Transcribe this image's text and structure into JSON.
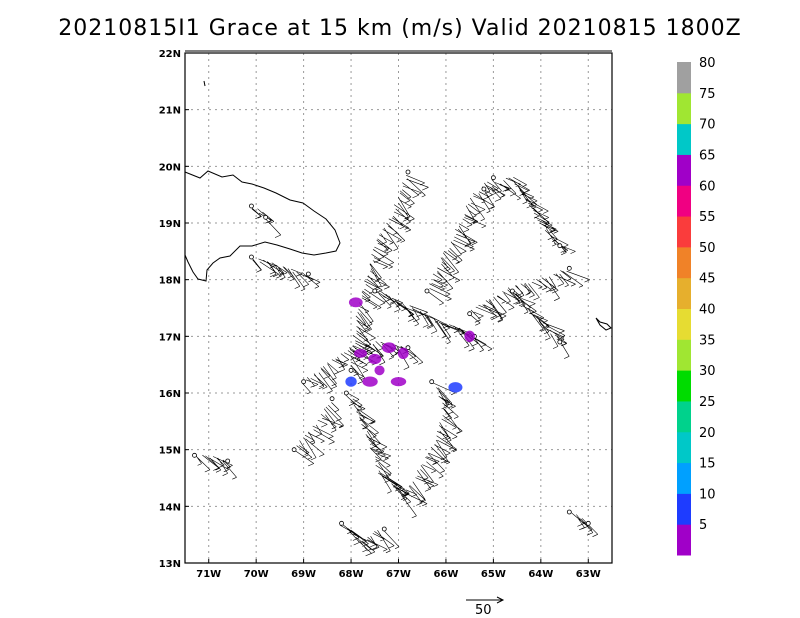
{
  "title": "20210815I1 Grace at 15 km (m/s) Valid 20210815  1800Z",
  "map": {
    "lon_range": [
      -71.5,
      -62.5
    ],
    "lat_range": [
      13,
      22
    ],
    "lat_ticks": [
      {
        "value": 13,
        "label": "13N"
      },
      {
        "value": 14,
        "label": "14N"
      },
      {
        "value": 15,
        "label": "15N"
      },
      {
        "value": 16,
        "label": "16N"
      },
      {
        "value": 17,
        "label": "17N"
      },
      {
        "value": 18,
        "label": "18N"
      },
      {
        "value": 19,
        "label": "19N"
      },
      {
        "value": 20,
        "label": "20N"
      },
      {
        "value": 21,
        "label": "21N"
      },
      {
        "value": 22,
        "label": "22N"
      }
    ],
    "lon_ticks": [
      {
        "value": -71,
        "label": "71W"
      },
      {
        "value": -70,
        "label": "70W"
      },
      {
        "value": -69,
        "label": "69W"
      },
      {
        "value": -68,
        "label": "68W"
      },
      {
        "value": -67,
        "label": "67W"
      },
      {
        "value": -66,
        "label": "66W"
      },
      {
        "value": -65,
        "label": "65W"
      },
      {
        "value": -64,
        "label": "64W"
      },
      {
        "value": -63,
        "label": "63W"
      }
    ],
    "grid": true
  },
  "colorbar": {
    "levels": [
      {
        "label": "5",
        "color": "#a000c8"
      },
      {
        "label": "10",
        "color": "#1e3cff"
      },
      {
        "label": "15",
        "color": "#00a0ff"
      },
      {
        "label": "20",
        "color": "#00c8c8"
      },
      {
        "label": "25",
        "color": "#00d28c"
      },
      {
        "label": "30",
        "color": "#00dc00"
      },
      {
        "label": "35",
        "color": "#a0e632"
      },
      {
        "label": "40",
        "color": "#e6dc32"
      },
      {
        "label": "45",
        "color": "#e6af2d"
      },
      {
        "label": "50",
        "color": "#f08228"
      },
      {
        "label": "55",
        "color": "#fa3c3c"
      },
      {
        "label": "60",
        "color": "#f00082"
      },
      {
        "label": "65",
        "color": "#a000c8"
      },
      {
        "label": "70",
        "color": "#00c8c8"
      },
      {
        "label": "75",
        "color": "#a0e632"
      },
      {
        "label": "80",
        "color": "#a0a0a0"
      }
    ]
  },
  "reference_vector": {
    "label": "50"
  },
  "wind_observations": {
    "flight_tracks": [
      [
        [
          -68.0,
          16.4
        ],
        [
          -67.9,
          17.2
        ],
        [
          -67.7,
          17.9
        ],
        [
          -67.5,
          18.6
        ],
        [
          -67.1,
          19.2
        ],
        [
          -66.8,
          19.9
        ]
      ],
      [
        [
          -68.1,
          16.0
        ],
        [
          -67.8,
          15.6
        ],
        [
          -67.6,
          15.1
        ],
        [
          -67.4,
          14.6
        ],
        [
          -66.9,
          14.2
        ],
        [
          -66.5,
          14.7
        ],
        [
          -66.2,
          15.2
        ],
        [
          -66.0,
          15.8
        ],
        [
          -66.3,
          16.2
        ]
      ],
      [
        [
          -67.5,
          17.8
        ],
        [
          -67.0,
          17.6
        ],
        [
          -66.5,
          17.4
        ],
        [
          -66.0,
          17.2
        ],
        [
          -65.4,
          17.0
        ]
      ],
      [
        [
          -66.4,
          17.8
        ],
        [
          -66.0,
          18.5
        ],
        [
          -65.7,
          19.0
        ],
        [
          -65.4,
          19.5
        ],
        [
          -65.0,
          19.8
        ]
      ],
      [
        [
          -65.2,
          19.6
        ],
        [
          -64.6,
          19.8
        ],
        [
          -64.3,
          19.4
        ],
        [
          -64.0,
          19.0
        ],
        [
          -63.6,
          18.6
        ]
      ],
      [
        [
          -65.5,
          17.4
        ],
        [
          -65.0,
          17.7
        ],
        [
          -64.5,
          17.9
        ],
        [
          -64.0,
          18.0
        ],
        [
          -63.4,
          18.2
        ]
      ],
      [
        [
          -64.6,
          17.8
        ],
        [
          -64.2,
          17.4
        ],
        [
          -63.8,
          17.1
        ],
        [
          -63.6,
          16.9
        ]
      ],
      [
        [
          -69.0,
          16.2
        ],
        [
          -68.5,
          16.5
        ],
        [
          -68.0,
          16.8
        ],
        [
          -67.4,
          16.9
        ],
        [
          -66.8,
          16.8
        ]
      ],
      [
        [
          -69.2,
          15.0
        ],
        [
          -68.9,
          15.3
        ],
        [
          -68.6,
          15.6
        ],
        [
          -68.4,
          15.9
        ]
      ],
      [
        [
          -70.1,
          19.3
        ],
        [
          -69.8,
          19.1
        ]
      ],
      [
        [
          -70.1,
          18.4
        ],
        [
          -69.4,
          18.2
        ],
        [
          -68.9,
          18.1
        ]
      ],
      [
        [
          -71.3,
          14.9
        ],
        [
          -70.6,
          14.8
        ]
      ],
      [
        [
          -68.2,
          13.7
        ],
        [
          -67.8,
          13.4
        ],
        [
          -67.3,
          13.6
        ]
      ],
      [
        [
          -63.4,
          13.9
        ],
        [
          -63.0,
          13.7
        ]
      ]
    ],
    "colored_patches": [
      {
        "lon": -67.5,
        "lat": 16.6,
        "color": "#a000c8"
      },
      {
        "lon": -67.2,
        "lat": 16.8,
        "color": "#a000c8"
      },
      {
        "lon": -66.9,
        "lat": 16.7,
        "color": "#a000c8"
      },
      {
        "lon": -67.8,
        "lat": 16.7,
        "color": "#a000c8"
      },
      {
        "lon": -67.4,
        "lat": 16.4,
        "color": "#a000c8"
      },
      {
        "lon": -68.0,
        "lat": 16.2,
        "color": "#1e3cff"
      },
      {
        "lon": -67.6,
        "lat": 16.2,
        "color": "#a000c8"
      },
      {
        "lon": -67.0,
        "lat": 16.2,
        "color": "#a000c8"
      },
      {
        "lon": -67.9,
        "lat": 17.6,
        "color": "#a000c8"
      },
      {
        "lon": -65.5,
        "lat": 17.0,
        "color": "#a000c8"
      },
      {
        "lon": -65.8,
        "lat": 16.1,
        "color": "#1e3cff"
      }
    ]
  }
}
